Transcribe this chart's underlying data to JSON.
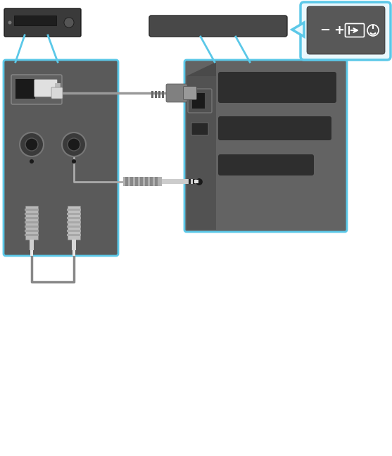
{
  "bg_color": "#ffffff",
  "light_blue": "#5bc8e8",
  "panel_bg": "#5a5a5a",
  "panel_bg2": "#636363",
  "vcr_color": "#3a3a3a",
  "soundbar_color": "#484848",
  "cable_gray": "#999999",
  "dark_slot": "#2e2e2e",
  "connector_light": "#c8c8c8",
  "connector_med": "#909090",
  "remote_bg": "#585858",
  "remote_border": "#5bc8e8",
  "callout_fill": "#eaf8fd",
  "rca_silver": "#c0c0c0",
  "opt_white": "#e0e0e0"
}
